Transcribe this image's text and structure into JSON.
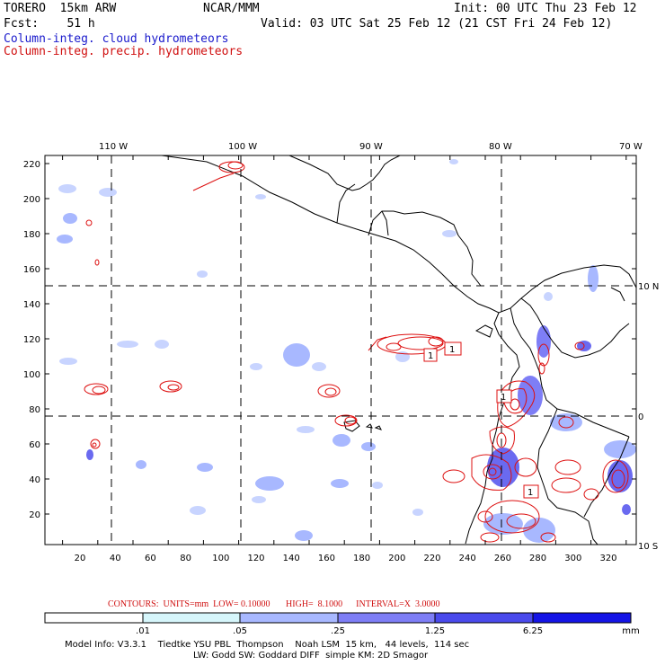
{
  "header": {
    "model": "TORERO  15km ARW",
    "center": "NCAR/MMM",
    "init": "Init: 00 UTC Thu 23 Feb 12",
    "fcst": "Fcst:    51 h",
    "valid": "Valid: 03 UTC Sat 25 Feb 12 (21 CST Fri 24 Feb 12)",
    "field_cloud": "Column-integ. cloud hydrometeors",
    "field_precip": "Column-integ. precip. hydrometeors"
  },
  "map": {
    "lon_labels": [
      "110 W",
      "100 W",
      "90 W",
      "80 W",
      "70 W"
    ],
    "lat_labels": [
      "10 N",
      "0",
      "10 S"
    ],
    "x_ticks": [
      "20",
      "40",
      "60",
      "80",
      "100",
      "120",
      "140",
      "160",
      "180",
      "200",
      "220",
      "240",
      "260",
      "280",
      "300",
      "320"
    ],
    "y_ticks": [
      "220",
      "200",
      "180",
      "160",
      "140",
      "120",
      "100",
      "80",
      "60",
      "40",
      "20"
    ],
    "box_labels": [
      "1",
      "1",
      "1",
      "1"
    ],
    "colors": {
      "cloud_light": "#c8f0f8",
      "cloud_mid": "#a8b4ff",
      "cloud_dark": "#6a6af0",
      "cloud_deep": "#2020e0",
      "precip": "#dd1010",
      "coast": "#000000"
    }
  },
  "contours": {
    "text": "CONTOURS:  UNITS=mm  LOW= 0.10000       HIGH=  8.1000      INTERVAL=X  3.0000"
  },
  "legend": {
    "ticks": [
      ".01",
      ".05",
      ".25",
      "1.25",
      "6.25"
    ],
    "unit": "mm",
    "colors": [
      "#ffffff",
      "#d6f6fb",
      "#a8b8ff",
      "#7e7ef6",
      "#4a4aec",
      "#1414e6"
    ]
  },
  "footer": {
    "line1": "Model Info: V3.3.1    Tiedtke YSU PBL  Thompson    Noah LSM  15 km,   44 levels,  114 sec",
    "line2": "LW: Godd SW: Goddard DIFF  simple KM: 2D Smagor"
  }
}
